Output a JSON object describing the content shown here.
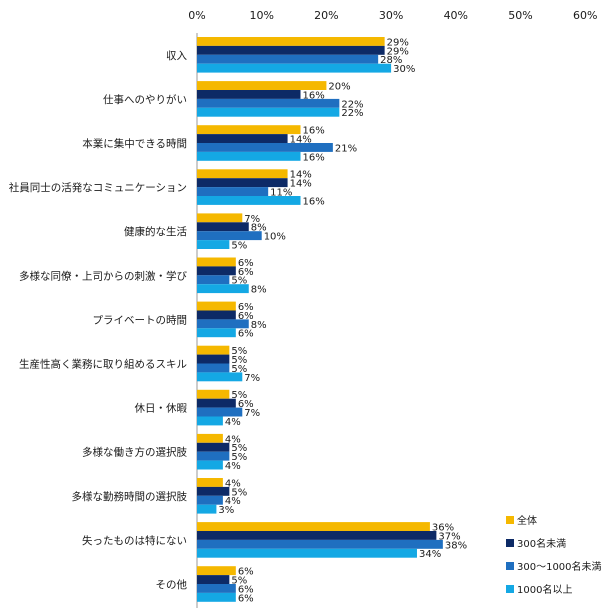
{
  "chart_data": {
    "type": "bar",
    "orientation": "horizontal",
    "title": "",
    "xlabel": "",
    "ylabel": "",
    "xlim": [
      0,
      60
    ],
    "x_ticks": [
      "0%",
      "10%",
      "20%",
      "30%",
      "40%",
      "50%",
      "60%"
    ],
    "value_suffix": "%",
    "grid": false,
    "legend_position": "bottom-right",
    "categories": [
      "収入",
      "仕事へのやりがい",
      "本業に集中できる時間",
      "社員同士の活発なコミュニケーション",
      "健康的な生活",
      "多様な同僚・上司からの刺激・学び",
      "プライベートの時間",
      "生産性高く業務に取り組めるスキル",
      "休日・休暇",
      "多様な働き方の選択肢",
      "多様な勤務時間の選択肢",
      "失ったものは特にない",
      "その他"
    ],
    "series": [
      {
        "name": "全体",
        "color": "#f5b800",
        "values": [
          29,
          20,
          16,
          14,
          7,
          6,
          6,
          5,
          5,
          4,
          4,
          36,
          6
        ]
      },
      {
        "name": "300名未満",
        "color": "#0d2a66",
        "values": [
          29,
          16,
          14,
          14,
          8,
          6,
          6,
          5,
          6,
          5,
          5,
          37,
          5
        ]
      },
      {
        "name": "300～1000名未満",
        "color": "#1f6fc0",
        "values": [
          28,
          22,
          21,
          11,
          10,
          5,
          8,
          5,
          7,
          5,
          4,
          38,
          6
        ]
      },
      {
        "name": "1000名以上",
        "color": "#14a8e4",
        "values": [
          30,
          22,
          16,
          16,
          5,
          8,
          6,
          7,
          4,
          4,
          3,
          34,
          6
        ]
      }
    ]
  }
}
